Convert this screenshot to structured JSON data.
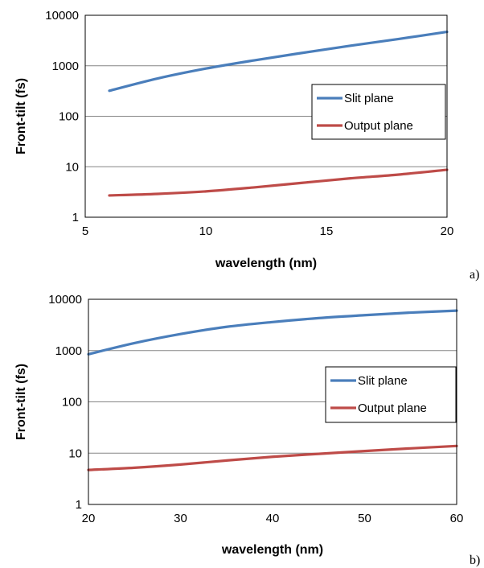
{
  "colors": {
    "slit": "#4A7EBB",
    "output": "#BE4B48",
    "grid": "#868686",
    "frame": "#000000"
  },
  "chart_data": [
    {
      "type": "line",
      "panel_label": "a)",
      "xlabel": "wavelength (nm)",
      "ylabel": "Front-tilt (fs)",
      "xlim": [
        5,
        20
      ],
      "ylim": [
        1,
        10000
      ],
      "yscale": "log",
      "grid": true,
      "legend_position": "right",
      "xticks": [
        5,
        10,
        15,
        20
      ],
      "yticks": [
        1,
        10,
        100,
        1000,
        10000
      ],
      "series": [
        {
          "name": "Slit plane",
          "color_key": "slit",
          "x": [
            6,
            8,
            10,
            12,
            14,
            16,
            18,
            20
          ],
          "y": [
            320,
            560,
            880,
            1280,
            1800,
            2500,
            3400,
            4700
          ]
        },
        {
          "name": "Output plane",
          "color_key": "output",
          "x": [
            6,
            8,
            10,
            12,
            14,
            16,
            18,
            20
          ],
          "y": [
            2.7,
            2.9,
            3.25,
            3.9,
            4.8,
            5.9,
            7.0,
            8.7
          ]
        }
      ]
    },
    {
      "type": "line",
      "panel_label": "b)",
      "xlabel": "wavelength (nm)",
      "ylabel": "Front-tilt (fs)",
      "xlim": [
        20,
        60
      ],
      "ylim": [
        1,
        10000
      ],
      "yscale": "log",
      "grid": true,
      "legend_position": "right",
      "xticks": [
        20,
        30,
        40,
        50,
        60
      ],
      "yticks": [
        1,
        10,
        100,
        1000,
        10000
      ],
      "series": [
        {
          "name": "Slit plane",
          "color_key": "slit",
          "x": [
            20,
            25,
            30,
            35,
            40,
            45,
            50,
            55,
            60
          ],
          "y": [
            850,
            1400,
            2100,
            2900,
            3600,
            4300,
            4900,
            5500,
            6000
          ]
        },
        {
          "name": "Output plane",
          "color_key": "output",
          "x": [
            20,
            25,
            30,
            35,
            40,
            45,
            50,
            55,
            60
          ],
          "y": [
            4.7,
            5.2,
            6.0,
            7.2,
            8.5,
            9.7,
            11.0,
            12.4,
            13.8
          ]
        }
      ]
    }
  ]
}
